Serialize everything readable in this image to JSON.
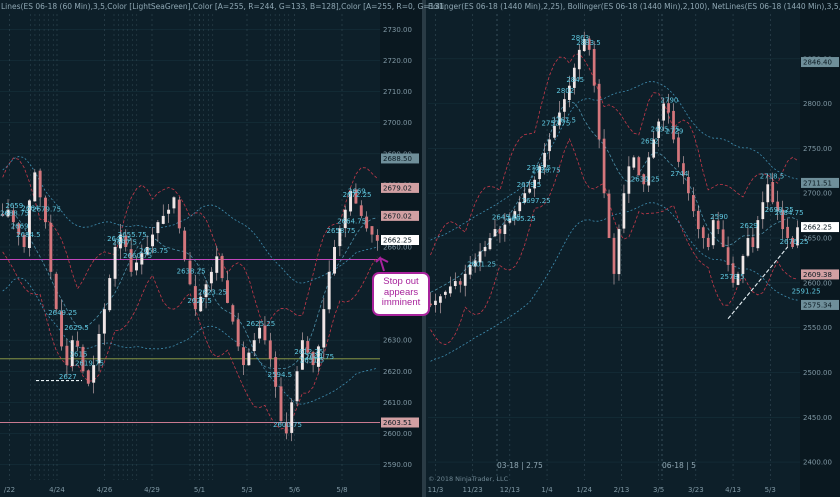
{
  "chart_data": [
    {
      "type": "candlestick",
      "header": "Lines(ES 06-18 (60 Min),3,5,Color [LightSeaGreen],Color [A=255, R=244, G=133, B=128],Color [A=255, R=0, G=131,",
      "ylim": [
        2585,
        2735
      ],
      "y_ticks": [
        2590,
        2600,
        2610,
        2620,
        2630,
        2640,
        2650,
        2660,
        2670,
        2680,
        2690,
        2700,
        2710,
        2720,
        2730
      ],
      "x_ticks": [
        "/22",
        "4/24",
        "4/26",
        "4/29",
        "5/1",
        "5/3",
        "5/6",
        "5/8"
      ],
      "badges": [
        {
          "label": "2688.50",
          "value": 2688.5,
          "color": "#6f8f9a"
        },
        {
          "label": "2679.02",
          "value": 2679.02,
          "color": "#d2a0a3"
        },
        {
          "label": "2670.02",
          "value": 2670.02,
          "color": "#d2a0a3"
        },
        {
          "label": "2662.25",
          "value": 2662.25,
          "color": "#ffffff"
        },
        {
          "label": "2603.51",
          "value": 2603.51,
          "color": "#d2a0a3"
        }
      ],
      "hlines": [
        {
          "value": 2656.0,
          "color": "#d94bd0"
        },
        {
          "value": 2624.0,
          "color": "#9aa84a"
        },
        {
          "value": 2603.51,
          "color": "#c97a90"
        }
      ],
      "close": [
        2670,
        2672,
        2668,
        2664,
        2660,
        2675,
        2684,
        2676,
        2668,
        2652,
        2640,
        2628,
        2622,
        2630,
        2628,
        2620,
        2616,
        2622,
        2632,
        2640,
        2650,
        2660,
        2664,
        2660,
        2652,
        2655,
        2658,
        2660,
        2664,
        2668,
        2670,
        2672,
        2676,
        2666,
        2656,
        2648,
        2640,
        2644,
        2648,
        2652,
        2657,
        2650,
        2642,
        2636,
        2628,
        2622,
        2626,
        2630,
        2634,
        2630,
        2624,
        2615,
        2604,
        2600,
        2610,
        2620,
        2630,
        2626,
        2622,
        2628,
        2640,
        2652,
        2660,
        2666,
        2672,
        2678,
        2674,
        2670,
        2666,
        2664,
        2662
      ],
      "annotations": [
        {
          "i": 1,
          "text": "2688.75"
        },
        {
          "i": 4,
          "text": "2684.5"
        },
        {
          "i": 7,
          "text": "2679.75"
        },
        {
          "i": 3,
          "text": "2669"
        },
        {
          "i": 5,
          "text": "2664"
        },
        {
          "i": 2,
          "text": "2659"
        },
        {
          "i": 10,
          "text": "2649.25"
        },
        {
          "i": 13,
          "text": "2629.5"
        },
        {
          "i": 12,
          "text": "2627"
        },
        {
          "i": 15,
          "text": "2619.75"
        },
        {
          "i": 14,
          "text": "2615"
        },
        {
          "i": 24,
          "text": "2660.75"
        },
        {
          "i": 27,
          "text": "2658.75"
        },
        {
          "i": 23,
          "text": "2655.75"
        },
        {
          "i": 34,
          "text": "2638.25"
        },
        {
          "i": 36,
          "text": "2627.5"
        },
        {
          "i": 38,
          "text": "2623.25"
        },
        {
          "i": 47,
          "text": "2625.25"
        },
        {
          "i": 52,
          "text": "2600.75"
        },
        {
          "i": 51,
          "text": "2594.5"
        },
        {
          "i": 56,
          "text": "2612.25"
        },
        {
          "i": 58,
          "text": "2644.75"
        },
        {
          "i": 57,
          "text": "2651.5"
        },
        {
          "i": 62,
          "text": "2658.75"
        },
        {
          "i": 65,
          "text": "2672.25"
        },
        {
          "i": 66,
          "text": "2669"
        },
        {
          "i": 64,
          "text": "2664.75"
        },
        {
          "i": 21,
          "text": "2647.5"
        },
        {
          "i": 22,
          "text": "2647.5"
        }
      ],
      "callout": "Stop out appears imminent"
    },
    {
      "type": "candlestick",
      "header": "Bollinger(ES 06-18 (1440 Min),2,25), Bollinger(ES 06-18 (1440 Min),2,100), NetLines(ES 06-18 (1440 Min),3,5,Color",
      "ylim": [
        2380,
        2900
      ],
      "y_ticks": [
        2400,
        2450,
        2500,
        2550,
        2600,
        2650,
        2700,
        2750,
        2800,
        2850
      ],
      "x_ticks": [
        "11/3",
        "11/23",
        "12/13",
        "1/4",
        "1/24",
        "2/13",
        "3/5",
        "3/23",
        "4/13",
        "5/3"
      ],
      "badges": [
        {
          "label": "2846.40",
          "value": 2846.4,
          "color": "#6f8f9a"
        },
        {
          "label": "2711.51",
          "value": 2711.51,
          "color": "#6f8f9a"
        },
        {
          "label": "2662.25",
          "value": 2662.25,
          "color": "#ffffff"
        },
        {
          "label": "2609.38",
          "value": 2609.38,
          "color": "#d2a0a3"
        },
        {
          "label": "2575.34",
          "value": 2575.34,
          "color": "#6f8f9a"
        }
      ],
      "close": [
        2575,
        2580,
        2585,
        2590,
        2596,
        2602,
        2598,
        2610,
        2620,
        2625,
        2635,
        2640,
        2650,
        2660,
        2655,
        2665,
        2672,
        2680,
        2690,
        2700,
        2705,
        2715,
        2730,
        2745,
        2760,
        2775,
        2790,
        2805,
        2820,
        2840,
        2860,
        2872,
        2860,
        2820,
        2760,
        2700,
        2650,
        2610,
        2660,
        2700,
        2730,
        2740,
        2720,
        2710,
        2740,
        2760,
        2780,
        2800,
        2790,
        2760,
        2735,
        2720,
        2700,
        2680,
        2660,
        2650,
        2640,
        2670,
        2660,
        2640,
        2620,
        2600,
        2610,
        2630,
        2650,
        2640,
        2670,
        2690,
        2710,
        2690,
        2680,
        2660,
        2650,
        2640,
        2662
      ],
      "annotations": [
        {
          "i": 31,
          "text": "2883.5"
        },
        {
          "i": 30,
          "text": "2863"
        },
        {
          "i": 29,
          "text": "2845"
        },
        {
          "i": 27,
          "text": "2802"
        },
        {
          "i": 26,
          "text": "2767.5"
        },
        {
          "i": 24,
          "text": "2752.75"
        },
        {
          "i": 22,
          "text": "2728.75"
        },
        {
          "i": 21,
          "text": "2713.5"
        },
        {
          "i": 20,
          "text": "2697.25"
        },
        {
          "i": 19,
          "text": "2679.5"
        },
        {
          "i": 17,
          "text": "2665.25"
        },
        {
          "i": 14,
          "text": "2645.25"
        },
        {
          "i": 9,
          "text": "2601.25"
        },
        {
          "i": 48,
          "text": "2790"
        },
        {
          "i": 50,
          "text": "2744"
        },
        {
          "i": 49,
          "text": "2729"
        },
        {
          "i": 46,
          "text": "2695.75"
        },
        {
          "i": 44,
          "text": "2652"
        },
        {
          "i": 42,
          "text": "2639.25"
        },
        {
          "i": 58,
          "text": "2590"
        },
        {
          "i": 60,
          "text": "2578.5"
        },
        {
          "i": 68,
          "text": "2718.5"
        },
        {
          "i": 69,
          "text": "2698.25"
        },
        {
          "i": 71,
          "text": "2684.75"
        },
        {
          "i": 72,
          "text": "2676.25"
        },
        {
          "i": 64,
          "text": "2629"
        }
      ],
      "trendline_label": "2591.25",
      "marker_labels": [
        "03-18 | 2.75",
        "06-18 | 5"
      ],
      "copyright": "© 2018 NinjaTrader, LLC"
    }
  ]
}
